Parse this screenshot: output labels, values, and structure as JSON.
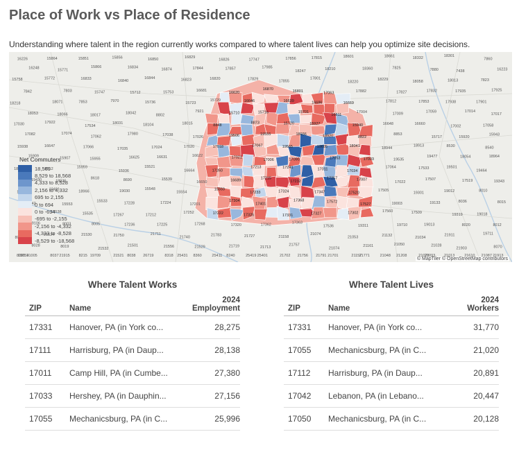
{
  "title": "Place of Work vs Place of Residence",
  "subtitle": "Understanding where talent in the region currently works compared to where talent lives can help you optimize site decisions.",
  "map": {
    "legend_title": "Net Commuters",
    "legend": [
      {
        "label": "18,569",
        "color": "#2f5fa6"
      },
      {
        "label": "8,529 to 18,568",
        "color": "#4a79bb"
      },
      {
        "label": "4,333 to 8,528",
        "color": "#6e96cc"
      },
      {
        "label": "2,156 to 4,332",
        "color": "#98b7dd"
      },
      {
        "label": "695 to 2,155",
        "color": "#c3d6ec"
      },
      {
        "label": "0 to 694",
        "color": "#e4edf6"
      },
      {
        "label": "0 to -694",
        "color": "#fbe3de"
      },
      {
        "label": "-695 to -2,155",
        "color": "#f7c0b6"
      },
      {
        "label": "-2,156 to -4,332",
        "color": "#f1968a"
      },
      {
        "label": "-4,333 to -8,528",
        "color": "#e86a60"
      },
      {
        "label": "-8,529 to -18,568",
        "color": "#d8434a"
      }
    ],
    "attribution": "© MapTiler © OpenStreetMap contributors",
    "zip_labels": [
      "16226",
      "15864",
      "15851",
      "15856",
      "16850",
      "16829",
      "16826",
      "17747",
      "17856",
      "17815",
      "18601",
      "18661",
      "18332",
      "18301",
      "7860",
      "16248",
      "15771",
      "15866",
      "16834",
      "16874",
      "17844",
      "17857",
      "17985",
      "18247",
      "18210",
      "18360",
      "7825",
      "7880",
      "7438",
      "16223",
      "15758",
      "15772",
      "16833",
      "16840",
      "16844",
      "16823",
      "16820",
      "17829",
      "17855",
      "17801",
      "18220",
      "18229",
      "18058",
      "18013",
      "7823",
      "7842",
      "7803",
      "15747",
      "15712",
      "15753",
      "16681",
      "16620",
      "16870",
      "16801",
      "17063",
      "17882",
      "17827",
      "17832",
      "17935",
      "17925",
      "18218",
      "18071",
      "7853",
      "7970",
      "15736",
      "15723",
      "15729",
      "16646",
      "16639",
      "16686",
      "16669",
      "17812",
      "17853",
      "17938",
      "17901",
      "18053",
      "18066",
      "18017",
      "18042",
      "8802",
      "7921",
      "15710",
      "15716",
      "15701",
      "16611",
      "17004",
      "17009",
      "17059",
      "17014",
      "17017",
      "17030",
      "17922",
      "17534",
      "18031",
      "18104",
      "18015",
      "8848",
      "8873",
      "15720",
      "15927",
      "15940",
      "16648",
      "16660",
      "17002",
      "17058",
      "17082",
      "17074",
      "17062",
      "17980",
      "17038",
      "17026",
      "19506",
      "19555",
      "18036",
      "18920",
      "8822",
      "8853",
      "15717",
      "15920",
      "15943",
      "15938",
      "16647",
      "17066",
      "17035",
      "17024",
      "17020",
      "17018",
      "17067",
      "19565",
      "19605",
      "18041",
      "18944",
      "18913",
      "8530",
      "8540",
      "15909",
      "15907",
      "15955",
      "16625",
      "16631",
      "16622",
      "17021",
      "17006",
      "17090",
      "17053",
      "17003",
      "19535",
      "19477",
      "18054",
      "18964",
      "18901",
      "8512",
      "15959",
      "15936",
      "15521",
      "16664",
      "17260",
      "17213",
      "17241",
      "17011",
      "17034",
      "17064",
      "17533",
      "19501",
      "19464",
      "19430",
      "18936",
      "8618",
      "8690",
      "15539",
      "16650",
      "16689",
      "17215",
      "17232",
      "17257",
      "17007",
      "17022",
      "17507",
      "17519",
      "19343",
      "19460",
      "19401",
      "18966",
      "19030",
      "15548",
      "15554",
      "15559",
      "17233",
      "17324",
      "17347",
      "17520",
      "17505",
      "19301",
      "19012",
      "8010",
      "8042",
      "15553",
      "15533",
      "17228",
      "17224",
      "17201",
      "17304",
      "17401",
      "17368",
      "17572",
      "17527",
      "19003",
      "19133",
      "8036",
      "8015",
      "15522",
      "15538",
      "15535",
      "17267",
      "17212",
      "17252",
      "17222",
      "17325",
      "17331",
      "17327",
      "17302",
      "17560",
      "17509",
      "19319",
      "19018",
      "19106",
      "8003",
      "8005",
      "17236",
      "17225",
      "17268",
      "17320",
      "17362",
      "17363",
      "17536",
      "19311",
      "19710",
      "19013",
      "8020",
      "8012",
      "8004",
      "21524",
      "21530",
      "21750",
      "21711",
      "21740",
      "21783",
      "21727",
      "21158",
      "21074",
      "21053",
      "21132",
      "21034",
      "21911",
      "19711",
      "8028",
      "8019",
      "21532",
      "21501",
      "21556",
      "21529",
      "21719",
      "21713",
      "21757",
      "21074",
      "21161",
      "21050",
      "21028",
      "21903",
      "8070",
      "8098",
      "8037",
      "8215",
      "21521",
      "26719",
      "25431",
      "25411",
      "25419",
      "21702",
      "21791",
      "21157",
      "21048",
      "21023",
      "21013",
      "21087",
      "21005",
      "21915",
      "19709",
      "8038",
      "8318",
      "8360",
      "8240",
      "25401",
      "21756",
      "21701",
      "21771",
      "21208",
      "21093",
      "21610",
      "21913",
      "19734"
    ]
  },
  "work_table": {
    "title": "Where Talent Works",
    "headers": {
      "zip": "ZIP",
      "name": "Name",
      "value_line1": "2024",
      "value_line2": "Employment"
    },
    "rows": [
      {
        "zip": "17331",
        "name": "Hanover, PA (in York co...",
        "value": "28,275"
      },
      {
        "zip": "17111",
        "name": "Harrisburg, PA (in Daup...",
        "value": "28,138"
      },
      {
        "zip": "17011",
        "name": "Camp Hill, PA (in Cumbe...",
        "value": "27,380"
      },
      {
        "zip": "17033",
        "name": "Hershey, PA (in Dauphin...",
        "value": "27,156"
      },
      {
        "zip": "17055",
        "name": "Mechanicsburg, PA (in C...",
        "value": "25,996"
      }
    ]
  },
  "live_table": {
    "title": "Where Talent Lives",
    "headers": {
      "zip": "ZIP",
      "name": "Name",
      "value_line1": "2024",
      "value_line2": "Workers"
    },
    "rows": [
      {
        "zip": "17331",
        "name": "Hanover, PA (in York co...",
        "value": "31,770"
      },
      {
        "zip": "17055",
        "name": "Mechanicsburg, PA (in C...",
        "value": "21,020"
      },
      {
        "zip": "17112",
        "name": "Harrisburg, PA (in Daup...",
        "value": "20,891"
      },
      {
        "zip": "17042",
        "name": "Lebanon, PA (in Lebano...",
        "value": "20,447"
      },
      {
        "zip": "17050",
        "name": "Mechanicsburg, PA (in C...",
        "value": "20,128"
      }
    ]
  }
}
